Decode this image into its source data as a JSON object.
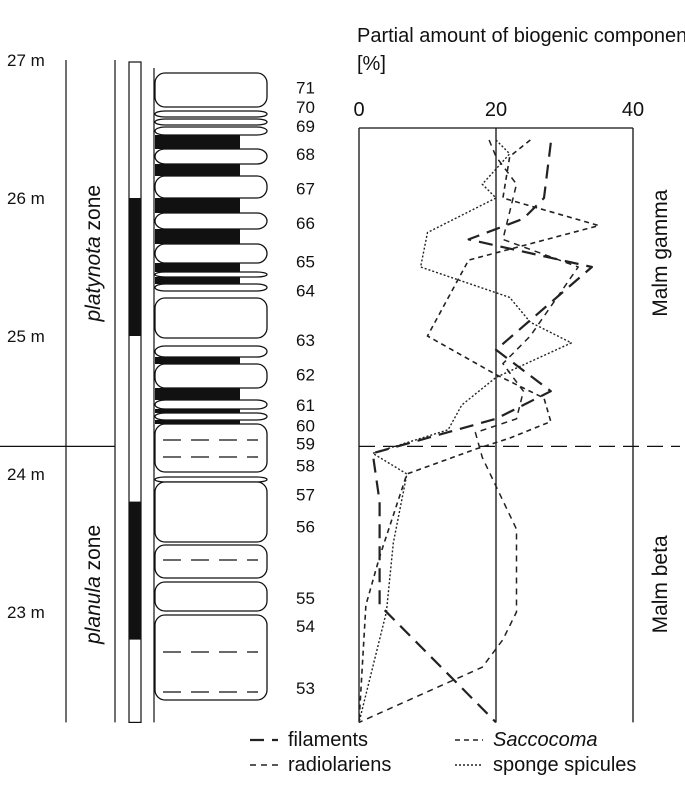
{
  "chart_data": {
    "type": "line",
    "title": "Partial amount of biogenic components [%]",
    "xlabel": "",
    "ylabel": "",
    "xlim": [
      0,
      40
    ],
    "x_ticks": [
      "0",
      "20",
      "40"
    ],
    "depth_range_m": [
      22.2,
      27.0
    ],
    "depth_ticks": [
      "23 m",
      "24 m",
      "25 m",
      "26 m",
      "27 m"
    ],
    "zones": [
      {
        "label": "platynota",
        "suffix": " zone",
        "depth_range_m": [
          24.2,
          27.0
        ]
      },
      {
        "label": "planula",
        "suffix": " zone",
        "depth_range_m": [
          22.2,
          24.2
        ]
      }
    ],
    "units": [
      {
        "label": "Malm gamma",
        "depth_range_m": [
          24.2,
          27.0
        ]
      },
      {
        "label": "Malm beta",
        "depth_range_m": [
          22.2,
          24.2
        ]
      }
    ],
    "boundary_depth_m": 24.2,
    "beds": [
      {
        "label": "71",
        "depth_m": 26.8
      },
      {
        "label": "70",
        "depth_m": 26.66
      },
      {
        "label": "69",
        "depth_m": 26.52
      },
      {
        "label": "68",
        "depth_m": 26.32
      },
      {
        "label": "67",
        "depth_m": 26.07
      },
      {
        "label": "66",
        "depth_m": 25.82
      },
      {
        "label": "65",
        "depth_m": 25.54
      },
      {
        "label": "64",
        "depth_m": 25.33
      },
      {
        "label": "63",
        "depth_m": 24.97
      },
      {
        "label": "62",
        "depth_m": 24.72
      },
      {
        "label": "61",
        "depth_m": 24.5
      },
      {
        "label": "60",
        "depth_m": 24.35
      },
      {
        "label": "59",
        "depth_m": 24.22
      },
      {
        "label": "58",
        "depth_m": 24.06
      },
      {
        "label": "57",
        "depth_m": 23.85
      },
      {
        "label": "56",
        "depth_m": 23.62
      },
      {
        "label": "55",
        "depth_m": 23.1
      },
      {
        "label": "54",
        "depth_m": 22.9
      },
      {
        "label": "53",
        "depth_m": 22.45
      }
    ],
    "series": [
      {
        "name": "filaments",
        "dash": "dash",
        "points": [
          [
            28,
            26.4
          ],
          [
            27,
            26.0
          ],
          [
            24,
            25.85
          ],
          [
            16,
            25.7
          ],
          [
            34,
            25.5
          ],
          [
            20,
            24.9
          ],
          [
            28,
            24.6
          ],
          [
            20,
            24.4
          ],
          [
            2,
            24.15
          ],
          [
            3,
            23.8
          ],
          [
            3,
            23.05
          ],
          [
            20,
            22.2
          ]
        ]
      },
      {
        "name": "radiolariens",
        "dash": "short",
        "points": [
          [
            19,
            26.42
          ],
          [
            20,
            26.3
          ],
          [
            23,
            26.1
          ],
          [
            22,
            25.9
          ],
          [
            21,
            25.7
          ],
          [
            32,
            25.5
          ],
          [
            25,
            25.0
          ],
          [
            21,
            24.8
          ],
          [
            24,
            24.6
          ],
          [
            23,
            24.4
          ],
          [
            17,
            24.3
          ],
          [
            18,
            24.12
          ],
          [
            23,
            23.6
          ],
          [
            23,
            23.0
          ],
          [
            21,
            22.8
          ],
          [
            18,
            22.6
          ],
          [
            0,
            22.2
          ]
        ]
      },
      {
        "name": "Saccocoma",
        "dash": "dot-dash",
        "points": [
          [
            25,
            26.42
          ],
          [
            22,
            26.3
          ],
          [
            21,
            26.0
          ],
          [
            35,
            25.8
          ],
          [
            16,
            25.55
          ],
          [
            10,
            25.0
          ],
          [
            20,
            24.72
          ],
          [
            27,
            24.55
          ],
          [
            28,
            24.38
          ],
          [
            22,
            24.26
          ],
          [
            17,
            24.18
          ],
          [
            7,
            24.0
          ],
          [
            3,
            23.4
          ],
          [
            1,
            23.05
          ],
          [
            0,
            22.2
          ]
        ]
      },
      {
        "name": "sponge spicules",
        "dash": "dot",
        "points": [
          [
            20,
            26.42
          ],
          [
            22,
            26.32
          ],
          [
            18,
            26.1
          ],
          [
            20,
            26.0
          ],
          [
            10,
            25.75
          ],
          [
            9,
            25.5
          ],
          [
            22,
            25.28
          ],
          [
            25,
            25.1
          ],
          [
            31,
            24.95
          ],
          [
            20,
            24.7
          ],
          [
            15,
            24.5
          ],
          [
            13,
            24.32
          ],
          [
            2,
            24.15
          ],
          [
            7,
            24.0
          ],
          [
            5,
            23.5
          ],
          [
            4,
            23.0
          ],
          [
            0,
            22.2
          ]
        ]
      }
    ],
    "legend": {
      "placement": "bottom"
    }
  }
}
